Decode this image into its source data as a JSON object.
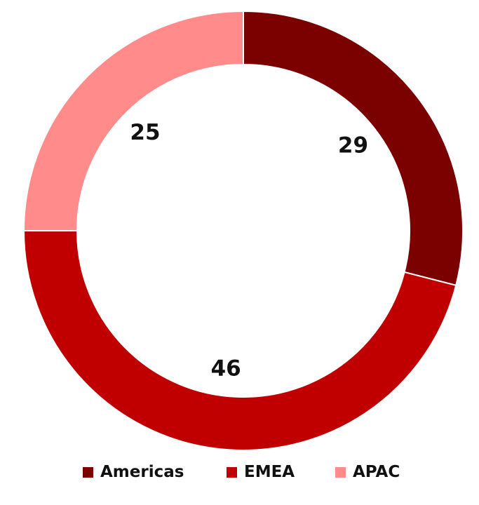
{
  "chart_data": {
    "type": "pie",
    "variant": "donut",
    "categories": [
      "Americas",
      "EMEA",
      "APAC"
    ],
    "values": [
      29,
      46,
      25
    ],
    "colors": [
      "#7b0000",
      "#c00000",
      "#ff8b8b"
    ],
    "data_labels": [
      "29",
      "46",
      "25"
    ],
    "start_angle": "top (12 o'clock)",
    "direction": "clockwise",
    "legend_position": "bottom"
  }
}
